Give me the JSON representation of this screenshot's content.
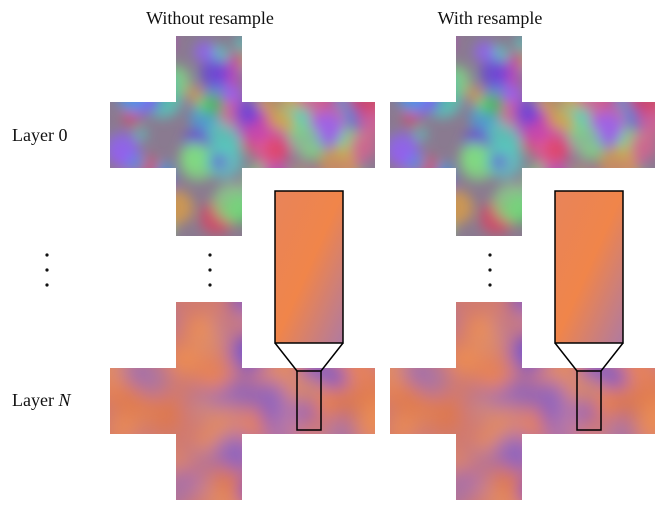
{
  "columns": [
    "Without resample",
    "With resample"
  ],
  "rows": [
    {
      "label": "Layer",
      "index": "0"
    },
    {
      "label": "Layer",
      "index": "N"
    }
  ]
}
